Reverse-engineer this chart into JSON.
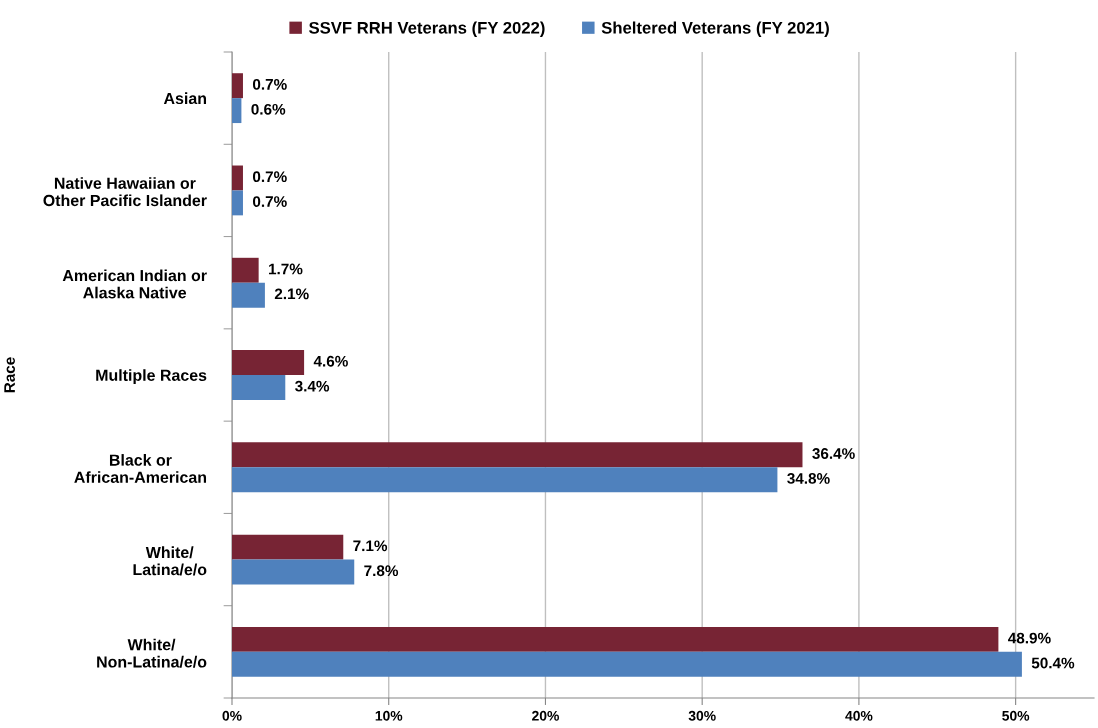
{
  "chart_data": {
    "type": "bar",
    "orientation": "horizontal",
    "ylabel": "Race",
    "categories": [
      "Asian",
      "Native Hawaiian or\nOther Pacific Islander",
      "American Indian or\nAlaska Native",
      "Multiple Races",
      "Black or\nAfrican-American",
      "White/\nLatina/e/o",
      "White/\nNon-Latina/e/o"
    ],
    "series": [
      {
        "name": "SSVF RRH Veterans (FY 2022)",
        "color": "#772434",
        "values": [
          0.7,
          0.7,
          1.7,
          4.6,
          36.4,
          7.1,
          48.9
        ],
        "value_labels": [
          "0.7%",
          "0.7%",
          "1.7%",
          "4.6%",
          "36.4%",
          "7.1%",
          "48.9%"
        ]
      },
      {
        "name": "Sheltered Veterans (FY 2021)",
        "color": "#4f81bd",
        "values": [
          0.6,
          0.7,
          2.1,
          3.4,
          34.8,
          7.8,
          50.4
        ],
        "value_labels": [
          "0.6%",
          "0.7%",
          "2.1%",
          "3.4%",
          "34.8%",
          "7.8%",
          "50.4%"
        ]
      }
    ],
    "xlim": [
      0,
      55
    ],
    "xticks": [
      {
        "value": 0,
        "label": "0%"
      },
      {
        "value": 10,
        "label": "10%"
      },
      {
        "value": 20,
        "label": "20%"
      },
      {
        "value": 30,
        "label": "30%"
      },
      {
        "value": 40,
        "label": "40%"
      },
      {
        "value": 50,
        "label": "50%"
      }
    ],
    "grid": "x",
    "legend": "top"
  }
}
